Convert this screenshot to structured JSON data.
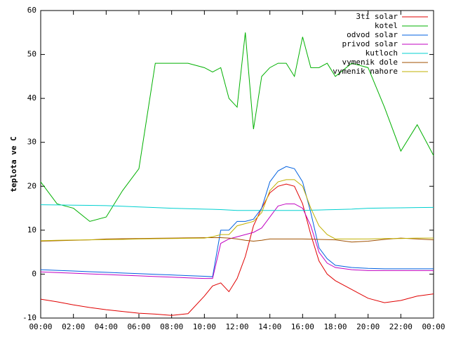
{
  "chart_data": {
    "type": "line",
    "y_label": "teplota ve C",
    "x": [
      0,
      1,
      2,
      3,
      4,
      5,
      6,
      7,
      8,
      9,
      10,
      10.5,
      11,
      11.5,
      12,
      12.5,
      13,
      13.5,
      14,
      14.5,
      15,
      15.5,
      16,
      16.5,
      17,
      17.5,
      18,
      19,
      20,
      21,
      22,
      23,
      24
    ],
    "xlim": [
      0,
      24
    ],
    "xticks": [
      {
        "value": 0,
        "label": "00:00"
      },
      {
        "value": 2,
        "label": "02:00"
      },
      {
        "value": 4,
        "label": "04:00"
      },
      {
        "value": 6,
        "label": "06:00"
      },
      {
        "value": 8,
        "label": "08:00"
      },
      {
        "value": 10,
        "label": "10:00"
      },
      {
        "value": 12,
        "label": "12:00"
      },
      {
        "value": 14,
        "label": "14:00"
      },
      {
        "value": 16,
        "label": "16:00"
      },
      {
        "value": 18,
        "label": "18:00"
      },
      {
        "value": 20,
        "label": "20:00"
      },
      {
        "value": 22,
        "label": "22:00"
      },
      {
        "value": 24,
        "label": "00:00"
      }
    ],
    "ylim": [
      -10,
      60
    ],
    "yticks": [
      -10,
      0,
      10,
      20,
      30,
      40,
      50,
      60
    ],
    "legend": "top-right",
    "series": [
      {
        "name": "3ti solar",
        "color": "#e00000",
        "values": [
          -5.7,
          -6.3,
          -7,
          -7.6,
          -8.1,
          -8.5,
          -8.9,
          -9.1,
          -9.4,
          -9,
          -5,
          -2.7,
          -2,
          -4,
          -1,
          4,
          11,
          15,
          18.5,
          20,
          20.5,
          20,
          16,
          9,
          3,
          0,
          -1.5,
          -3.5,
          -5.5,
          -6.5,
          -6,
          -5,
          -4.5
        ]
      },
      {
        "name": "kotel",
        "color": "#00b000",
        "values": [
          21,
          16,
          15,
          12,
          13,
          19,
          24,
          48,
          48,
          48,
          47,
          46,
          47,
          40,
          38,
          55,
          33,
          45,
          47,
          48,
          48,
          45,
          54,
          47,
          47,
          48,
          45,
          48,
          47,
          38,
          28,
          34,
          27
        ]
      },
      {
        "name": "odvod solar",
        "color": "#0060e0",
        "values": [
          1,
          0.85,
          0.7,
          0.55,
          0.4,
          0.25,
          0.1,
          -0.05,
          -0.2,
          -0.35,
          -0.5,
          -0.6,
          10,
          10,
          12,
          12,
          12.5,
          15,
          21,
          23.5,
          24.5,
          24,
          21,
          14,
          6,
          3.5,
          2,
          1.5,
          1.3,
          1.2,
          1.2,
          1.2,
          1.2
        ]
      },
      {
        "name": "privod solar",
        "color": "#c000c0",
        "values": [
          0.5,
          0.35,
          0.2,
          0.05,
          -0.1,
          -0.25,
          -0.4,
          -0.55,
          -0.7,
          -0.85,
          -1,
          -1,
          7,
          8,
          8.5,
          9,
          9.5,
          10.5,
          13,
          15.5,
          16,
          16,
          15,
          11,
          5,
          2.5,
          1.5,
          1,
          0.8,
          0.8,
          0.8,
          0.8,
          0.8
        ]
      },
      {
        "name": "kutloch",
        "color": "#00d0d0",
        "values": [
          15.8,
          15.75,
          15.7,
          15.65,
          15.6,
          15.45,
          15.3,
          15.15,
          15,
          14.9,
          14.8,
          14.75,
          14.7,
          14.6,
          14.5,
          14.5,
          14.5,
          14.5,
          14.5,
          14.5,
          14.5,
          14.5,
          14.5,
          14.55,
          14.6,
          14.65,
          14.7,
          14.8,
          15,
          15.05,
          15.1,
          15.15,
          15.2
        ]
      },
      {
        "name": "vymenik dole",
        "color": "#a05000",
        "values": [
          7.5,
          7.6,
          7.7,
          7.8,
          8,
          8.05,
          8.1,
          8.15,
          8.2,
          8.25,
          8.3,
          8.3,
          8.3,
          8.2,
          8,
          7.7,
          7.5,
          7.7,
          8,
          8,
          8,
          8,
          8,
          7.95,
          7.9,
          7.85,
          7.8,
          7.3,
          7.5,
          7.9,
          8.2,
          8,
          7.8
        ]
      },
      {
        "name": "vymenik nahore",
        "color": "#c0b000",
        "values": [
          7.6,
          7.7,
          7.75,
          7.8,
          7.85,
          7.9,
          8,
          8.05,
          8.1,
          8.15,
          8.2,
          8.5,
          9,
          9,
          11,
          11.5,
          12,
          14,
          19,
          21,
          21.5,
          21.5,
          20,
          15,
          11,
          9,
          8,
          8,
          8,
          8.1,
          8.1,
          8.2,
          8.2
        ]
      }
    ]
  }
}
